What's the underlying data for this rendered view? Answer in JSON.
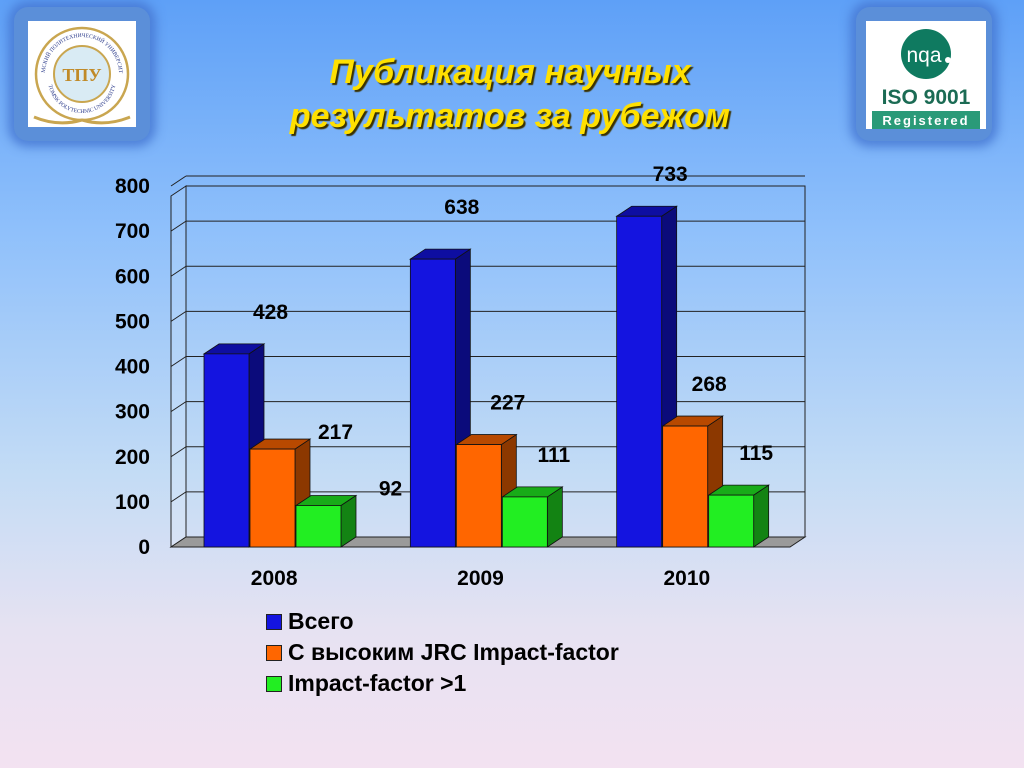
{
  "title_lines": [
    "Публикация научных",
    "результатов за рубежом"
  ],
  "logos": {
    "tpu": {
      "top_text": "ТОМСКИЙ ПОЛИТЕХНИЧЕСКИЙ УНИВЕРСИТЕТ",
      "bottom_text": "TOMSK POLYTECHNIC UNIVERSITY",
      "monogram": "ТПУ"
    },
    "iso": {
      "brand": "nqa",
      "standard": "ISO 9001",
      "status": "Registered"
    }
  },
  "chart_data": {
    "type": "bar",
    "categories": [
      "2008",
      "2009",
      "2010"
    ],
    "series": [
      {
        "name": "Всего",
        "values": [
          428,
          638,
          733
        ],
        "color": "#1414e0"
      },
      {
        "name": "С высоким JRC Impact-factor",
        "values": [
          217,
          227,
          268
        ],
        "color": "#ff6600"
      },
      {
        "name": "Impact-factor >1",
        "values": [
          92,
          111,
          115
        ],
        "color": "#22ee22"
      }
    ],
    "ylim": [
      0,
      800
    ],
    "yticks": [
      "0",
      "100",
      "200",
      "300",
      "400",
      "500",
      "600",
      "700",
      "800"
    ],
    "grid": true,
    "legend_position": "bottom",
    "style": "3d-clustered-bar"
  }
}
